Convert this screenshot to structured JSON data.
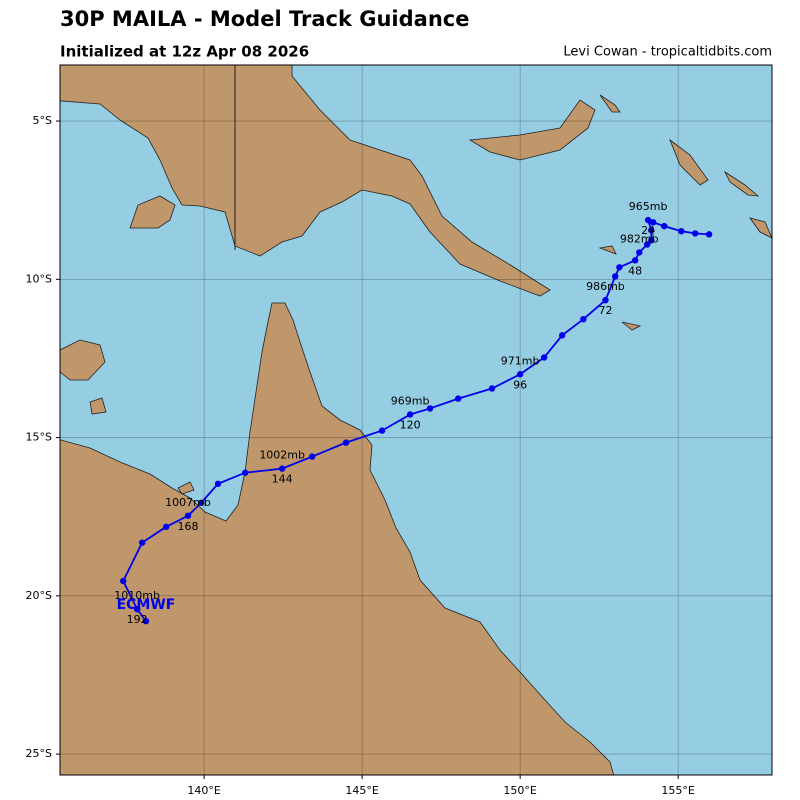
{
  "title": "30P MAILA - Model Track Guidance",
  "subtitle": "Initialized at 12z Apr 08 2026",
  "credit": "Levi Cowan - tropicaltidbits.com",
  "map": {
    "lonlim": [
      135.44,
      157.97
    ],
    "latlim": [
      -25.66,
      -3.23
    ],
    "lonticks": [
      {
        "value": 140,
        "label": "140°E"
      },
      {
        "value": 145,
        "label": "145°E"
      },
      {
        "value": 150,
        "label": "150°E"
      },
      {
        "value": 155,
        "label": "155°E"
      }
    ],
    "latticks": [
      {
        "value": -5,
        "label": "5°S"
      },
      {
        "value": -10,
        "label": "10°S"
      },
      {
        "value": -15,
        "label": "15°S"
      },
      {
        "value": -20,
        "label": "20°S"
      },
      {
        "value": -25,
        "label": "25°S"
      }
    ],
    "grid": true,
    "ocean_color": "#95cde3",
    "land_color": "#bf976b"
  },
  "track": {
    "name": "ECMWF",
    "color": "#0000ee",
    "lon": [
      155.98,
      155.54,
      155.1,
      154.56,
      154.21,
      154.05,
      154.15,
      154.15,
      154.02,
      153.77,
      153.64,
      153.14,
      153.01,
      152.7,
      152.0,
      151.33,
      150.76,
      150.0,
      149.11,
      148.04,
      147.15,
      146.52,
      145.63,
      144.49,
      143.42,
      142.47,
      141.3,
      140.44,
      139.91,
      139.49,
      138.8,
      138.04,
      137.44,
      137.88,
      138.16
    ],
    "lat": [
      -8.58,
      -8.55,
      -8.48,
      -8.32,
      -8.2,
      -8.13,
      -8.45,
      -8.77,
      -8.9,
      -9.15,
      -9.4,
      -9.62,
      -9.91,
      -10.66,
      -11.26,
      -11.77,
      -12.47,
      -13.0,
      -13.45,
      -13.77,
      -14.08,
      -14.27,
      -14.78,
      -15.16,
      -15.6,
      -15.98,
      -16.11,
      -16.46,
      -17.06,
      -17.47,
      -17.82,
      -18.32,
      -19.53,
      -20.42,
      -20.8
    ],
    "pressure_labels": [
      "965mb",
      "982mb",
      "986mb",
      "971mb",
      "969mb",
      "1002mb",
      "1007mb",
      "1010mb"
    ],
    "hour_labels": [
      "24",
      "48",
      "72",
      "96",
      "120",
      "144",
      "168",
      "192"
    ]
  }
}
